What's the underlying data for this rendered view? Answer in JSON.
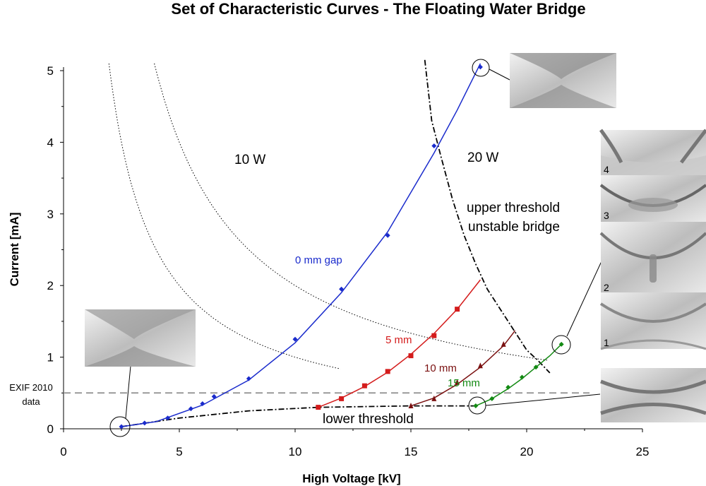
{
  "chart_data": {
    "type": "scatter",
    "title": "Set of Characteristic Curves - The Floating Water Bridge",
    "xlabel": "High Voltage [kV]",
    "ylabel": "Current [mA]",
    "xlim": [
      0,
      25
    ],
    "ylim": [
      0,
      5.1
    ],
    "xticks": [
      "0",
      "5",
      "10",
      "15",
      "20",
      "25"
    ],
    "yticks": [
      "0",
      "1",
      "2",
      "3",
      "4",
      "5"
    ],
    "grid": false,
    "series": [
      {
        "name": "0 mm gap",
        "color": "#1a2bcc",
        "marker": "diamond",
        "x": [
          2.5,
          3.5,
          4.5,
          5.5,
          6,
          6.5,
          8,
          10,
          12,
          14,
          16,
          18
        ],
        "y": [
          0.03,
          0.08,
          0.15,
          0.28,
          0.35,
          0.45,
          0.7,
          1.25,
          1.95,
          2.7,
          3.95,
          5.05
        ],
        "fit": [
          [
            2.5,
            0.03
          ],
          [
            4,
            0.1
          ],
          [
            6,
            0.33
          ],
          [
            8,
            0.68
          ],
          [
            10,
            1.2
          ],
          [
            12,
            1.9
          ],
          [
            14,
            2.75
          ],
          [
            16,
            3.85
          ],
          [
            17,
            4.45
          ],
          [
            18,
            5.1
          ]
        ]
      },
      {
        "name": "5 mm",
        "color": "#d41c1c",
        "marker": "square",
        "x": [
          11,
          12,
          13,
          14,
          15,
          16,
          17
        ],
        "y": [
          0.3,
          0.42,
          0.6,
          0.8,
          1.02,
          1.3,
          1.67
        ],
        "fit": [
          [
            11,
            0.3
          ],
          [
            12,
            0.43
          ],
          [
            13,
            0.59
          ],
          [
            14,
            0.79
          ],
          [
            15,
            1.04
          ],
          [
            16,
            1.33
          ],
          [
            17,
            1.67
          ],
          [
            18,
            2.08
          ]
        ]
      },
      {
        "name": "10 mm",
        "color": "#7a1010",
        "marker": "triangle",
        "x": [
          15,
          16,
          17,
          18,
          19
        ],
        "y": [
          0.32,
          0.42,
          0.65,
          0.88,
          1.18
        ],
        "fit": [
          [
            15,
            0.32
          ],
          [
            16,
            0.43
          ],
          [
            17,
            0.62
          ],
          [
            18,
            0.86
          ],
          [
            19,
            1.16
          ],
          [
            19.5,
            1.37
          ]
        ]
      },
      {
        "name": "15 mm",
        "color": "#138a13",
        "marker": "diamond",
        "x": [
          17.8,
          18.5,
          19.2,
          19.8,
          20.4,
          21.5
        ],
        "y": [
          0.32,
          0.42,
          0.58,
          0.72,
          0.86,
          1.18
        ],
        "fit": [
          [
            17.8,
            0.32
          ],
          [
            18.5,
            0.42
          ],
          [
            19.2,
            0.56
          ],
          [
            19.8,
            0.7
          ],
          [
            20.4,
            0.86
          ],
          [
            21,
            1.02
          ],
          [
            21.5,
            1.18
          ]
        ]
      }
    ],
    "reference_line": {
      "label": "EXIF 2010 data",
      "y": 0.5,
      "color": "#999999"
    },
    "thresholds": {
      "lower": {
        "label": "lower threshold",
        "points": [
          [
            2.5,
            0.03
          ],
          [
            5,
            0.15
          ],
          [
            8,
            0.25
          ],
          [
            11,
            0.3
          ],
          [
            15,
            0.32
          ],
          [
            17.8,
            0.32
          ]
        ]
      },
      "upper": {
        "label": "upper threshold unstable bridge",
        "points": [
          [
            15.6,
            5.15
          ],
          [
            15.9,
            4.3
          ],
          [
            16.3,
            3.8
          ],
          [
            16.8,
            3.2
          ],
          [
            17.3,
            2.7
          ],
          [
            17.8,
            2.3
          ],
          [
            18.3,
            1.95
          ],
          [
            19,
            1.6
          ],
          [
            20,
            1.1
          ],
          [
            20.5,
            0.95
          ],
          [
            21,
            0.78
          ]
        ]
      }
    },
    "power_curves": [
      {
        "label": "10 W",
        "watts": 10,
        "x_range": [
          1.96,
          12.0
        ]
      },
      {
        "label": "20 W",
        "watts": 20,
        "x_range": [
          3.92,
          21.0
        ]
      }
    ],
    "annotations": {
      "series_labels": [
        "0 mm gap",
        "5 mm",
        "10 mm",
        "15 mm"
      ],
      "power_labels": [
        "10 W",
        "20 W"
      ],
      "upper_threshold_lines": [
        "upper threshold",
        "unstable bridge"
      ],
      "lower_threshold": "lower threshold",
      "exif_lines": [
        "EXIF 2010",
        "data"
      ],
      "photo_numbers": [
        "4",
        "3",
        "2",
        "1"
      ]
    }
  }
}
